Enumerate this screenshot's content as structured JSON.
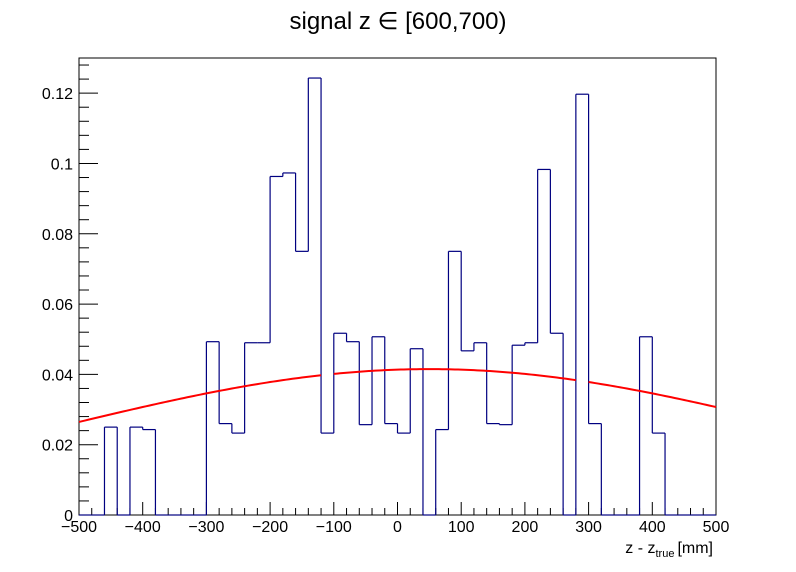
{
  "title": "signal z ∈ [600,700)",
  "xaxis": {
    "label_main": "z - z",
    "label_sub": "true",
    "label_unit": "[mm]",
    "range": [
      -500,
      500
    ],
    "ticks": [
      -500,
      -400,
      -300,
      -200,
      -100,
      0,
      100,
      200,
      300,
      400,
      500
    ],
    "tick_labels": [
      "−500",
      "−400",
      "−300",
      "−200",
      "−100",
      "0",
      "100",
      "200",
      "300",
      "400",
      "500"
    ]
  },
  "yaxis": {
    "range": [
      0,
      0.13
    ],
    "ticks": [
      0,
      0.02,
      0.04,
      0.06,
      0.08,
      0.1,
      0.12
    ],
    "tick_labels": [
      "0",
      "0.02",
      "0.04",
      "0.06",
      "0.08",
      "0.1",
      "0.12"
    ]
  },
  "colors": {
    "histogram": "#000080",
    "fit": "#ff0000",
    "frame": "#000000"
  },
  "chart_data": {
    "type": "histogram",
    "bin_width": 20,
    "bin_low_edges": [
      -500,
      -480,
      -460,
      -440,
      -420,
      -400,
      -380,
      -360,
      -340,
      -320,
      -300,
      -280,
      -260,
      -240,
      -220,
      -200,
      -180,
      -160,
      -140,
      -120,
      -100,
      -80,
      -60,
      -40,
      -20,
      0,
      20,
      40,
      60,
      80,
      100,
      120,
      140,
      160,
      180,
      200,
      220,
      240,
      260,
      280,
      300,
      320,
      340,
      360,
      380,
      400,
      420,
      440,
      460,
      480
    ],
    "values": [
      0,
      0,
      0.025,
      0,
      0.025,
      0.0243,
      0,
      0,
      0,
      0,
      0.0493,
      0.026,
      0.0233,
      0.049,
      0.049,
      0.0963,
      0.0973,
      0.075,
      0.1243,
      0.0233,
      0.0517,
      0.0493,
      0.0257,
      0.0507,
      0.026,
      0.0233,
      0.0473,
      0,
      0.0243,
      0.075,
      0.0467,
      0.049,
      0.026,
      0.0257,
      0.0483,
      0.049,
      0.0983,
      0.0517,
      0,
      0.1197,
      0.026,
      0,
      0,
      0,
      0.0507,
      0.0233,
      0,
      0,
      0,
      0
    ],
    "fit": {
      "type": "gaussian",
      "amplitude": 0.0415,
      "mean": 50,
      "sigma": 580,
      "visible_segments": [
        [
          -500,
          -120
        ],
        [
          -100,
          280
        ],
        [
          300,
          500
        ]
      ]
    }
  }
}
